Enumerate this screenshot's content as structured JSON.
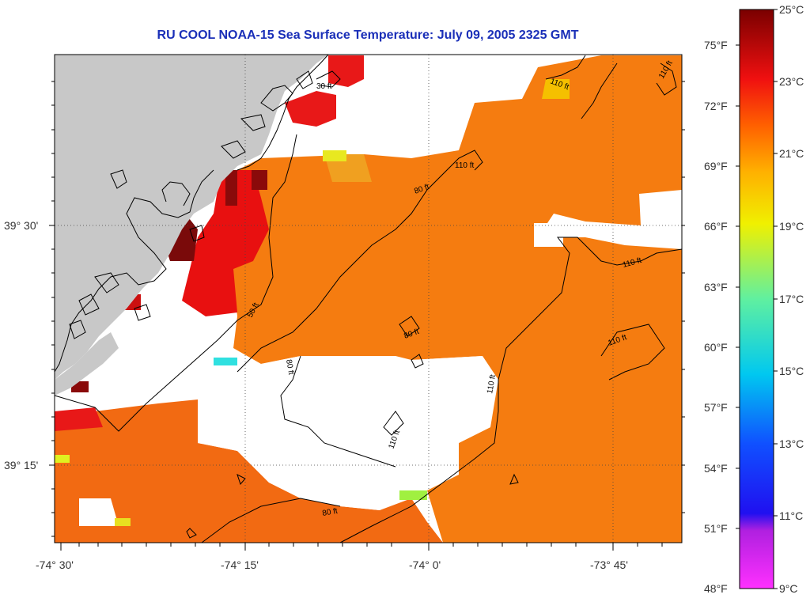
{
  "title": "RU COOL  NOAA-15  Sea Surface Temperature:  July 09, 2005 2325 GMT",
  "axes": {
    "lon_labels": [
      "-74° 30'",
      "-74° 15'",
      "-74° 0'",
      "-73° 45'"
    ],
    "lat_labels": [
      "39° 30'",
      "39° 15'"
    ]
  },
  "colorbar": {
    "fahrenheit_labels": [
      "75°F",
      "72°F",
      "69°F",
      "66°F",
      "63°F",
      "60°F",
      "57°F",
      "54°F",
      "51°F",
      "48°F"
    ],
    "celsius_labels": [
      "25°C",
      "23°C",
      "21°C",
      "19°C",
      "17°C",
      "15°C",
      "13°C",
      "11°C",
      "9°C"
    ],
    "range_celsius": [
      9,
      25
    ]
  },
  "bathymetry_labels": [
    "30 ft",
    "50 ft",
    "80 ft",
    "80 ft",
    "80 ft",
    "80 ft",
    "110 ft",
    "110 ft",
    "110 ft",
    "110 ft",
    "110 ft",
    "110 ft",
    "110 ft"
  ],
  "colors": {
    "land": "#c8c8c8",
    "ocean_warm": "#f57a0f",
    "ocean_hot": "#7a0a0a",
    "cloud_mask": "#ffffff",
    "title": "#1a2fb8"
  }
}
